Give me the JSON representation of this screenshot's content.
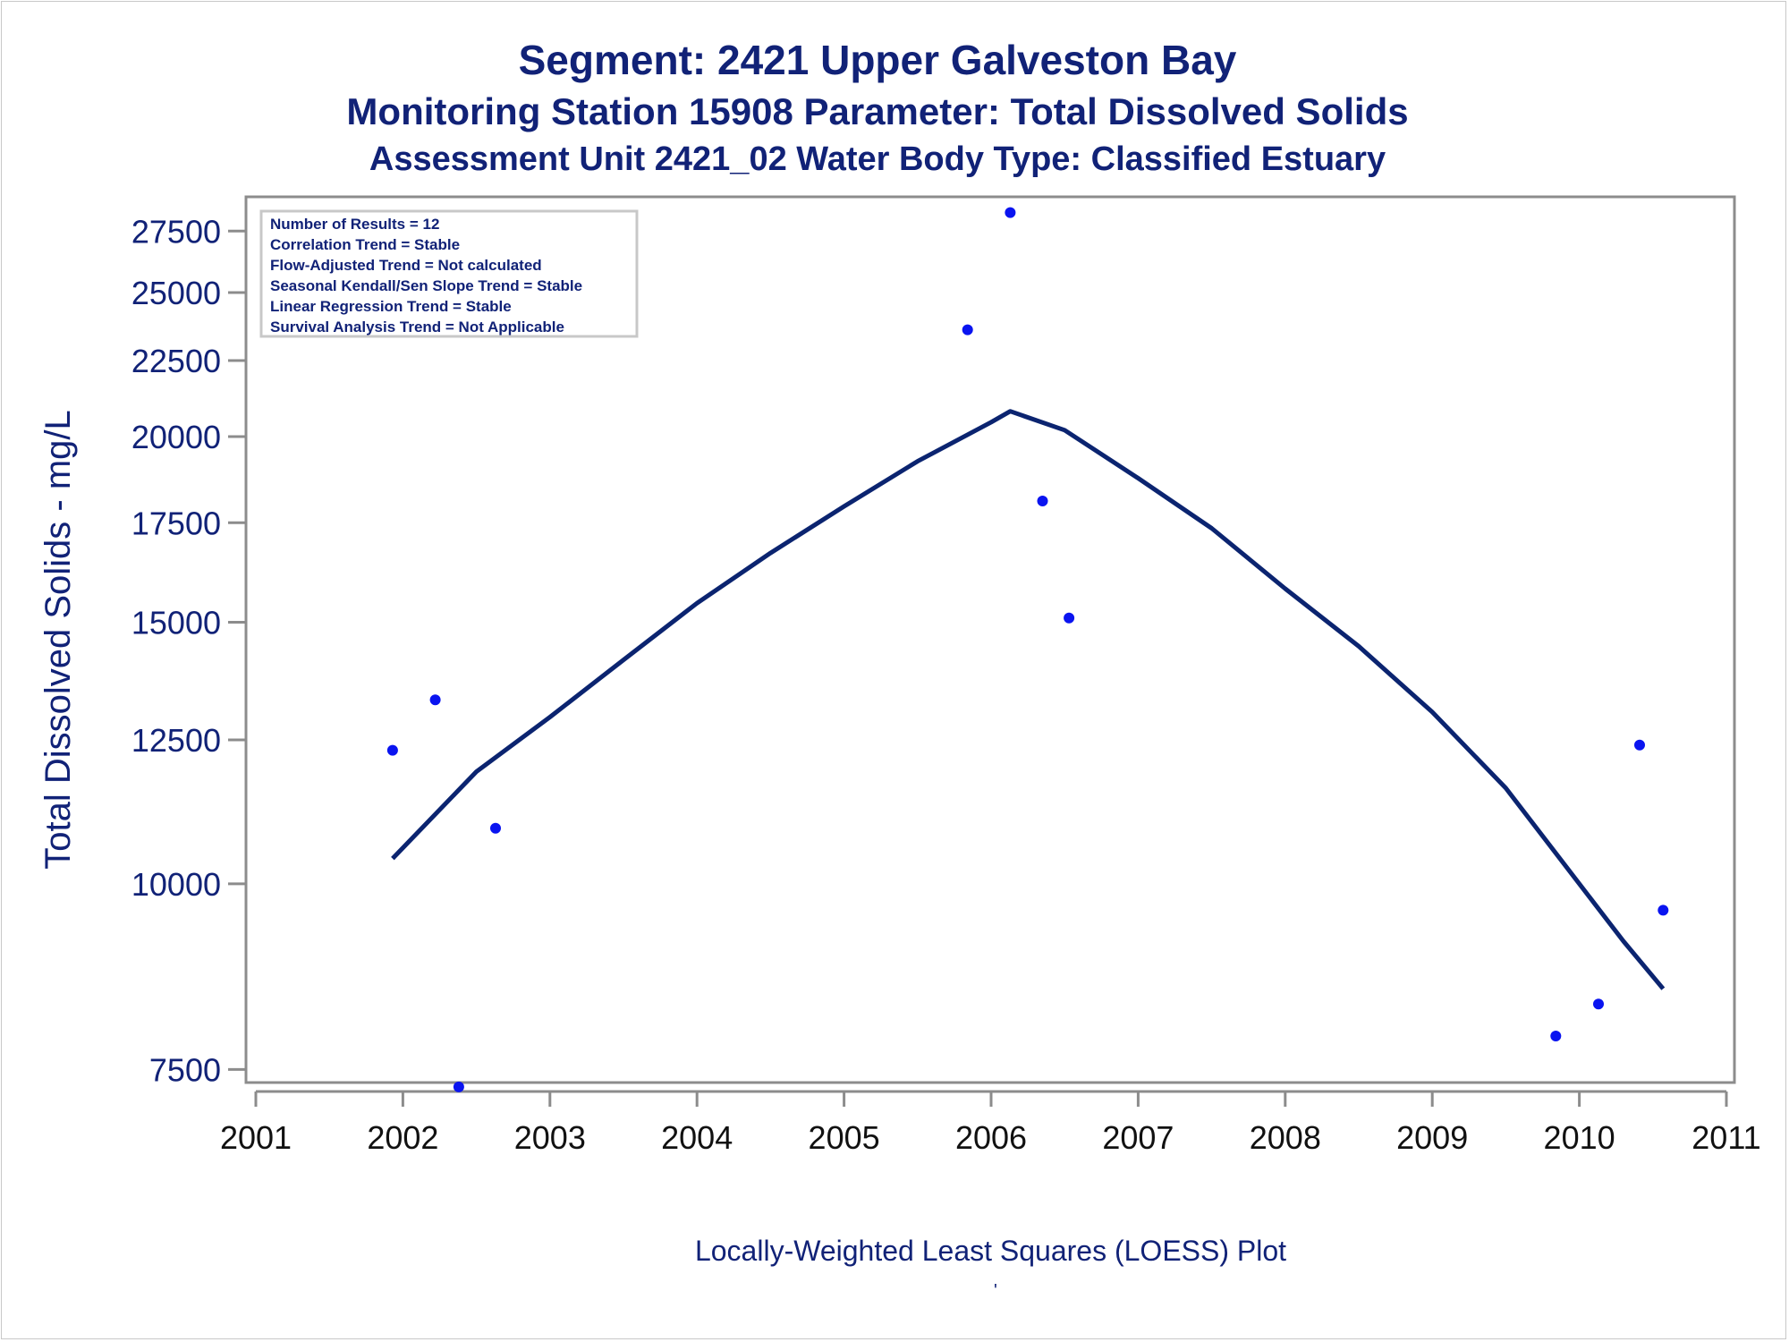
{
  "colors": {
    "text": "#112277",
    "line": "#0b2470",
    "marker": "#0a14f0",
    "axis": "#8c8c8c",
    "tick_label": "#112277"
  },
  "chart_data": {
    "type": "scatter",
    "title": "Segment: 2421  Upper Galveston Bay",
    "subtitle": "Monitoring Station 15908 Parameter: Total Dissolved Solids",
    "subtitle2": "Assessment Unit 2421_02   Water Body Type: Classified Estuary",
    "xlabel": "",
    "ylabel": "Total Dissolved Solids - mg/L",
    "footnote": "Locally-Weighted Least Squares (LOESS) Plot",
    "footnote_mark": "'",
    "y_scale": "log",
    "xlim": [
      2001,
      2011
    ],
    "ylim": [
      7350,
      29000
    ],
    "x_ticks": [
      "2001",
      "2002",
      "2003",
      "2004",
      "2005",
      "2006",
      "2007",
      "2008",
      "2009",
      "2010",
      "2011"
    ],
    "y_ticks": [
      "7500",
      "10000",
      "12500",
      "15000",
      "17500",
      "20000",
      "22500",
      "25000",
      "27500"
    ],
    "stats": [
      "Number of Results = 12",
      "Correlation Trend = Stable",
      "Flow-Adjusted Trend = Not calculated",
      "Seasonal Kendall/Sen Slope Trend = Stable",
      "Linear Regression Trend = Stable",
      "Survival Analysis Trend = Not Applicable"
    ],
    "grid": false,
    "series": [
      {
        "kind": "points",
        "x": [
          2001.93,
          2002.22,
          2002.38,
          2002.63,
          2005.84,
          2006.13,
          2006.35,
          2006.53,
          2009.84,
          2010.13,
          2010.41,
          2010.57
        ],
        "y": [
          12300,
          13300,
          7300,
          10900,
          23600,
          28300,
          18100,
          15100,
          7900,
          8300,
          12400,
          9600
        ]
      },
      {
        "kind": "loess",
        "x": [
          2001.93,
          2002.5,
          2003.0,
          2003.5,
          2004.0,
          2004.5,
          2005.0,
          2005.5,
          2006.0,
          2006.13,
          2006.5,
          2007.0,
          2007.5,
          2008.0,
          2008.5,
          2009.0,
          2009.5,
          2010.0,
          2010.3,
          2010.57
        ],
        "y": [
          10400,
          11900,
          12950,
          14150,
          15450,
          16700,
          17950,
          19250,
          20450,
          20800,
          20200,
          18750,
          17350,
          15800,
          14450,
          13050,
          11600,
          10000,
          9150,
          8500
        ]
      }
    ]
  }
}
